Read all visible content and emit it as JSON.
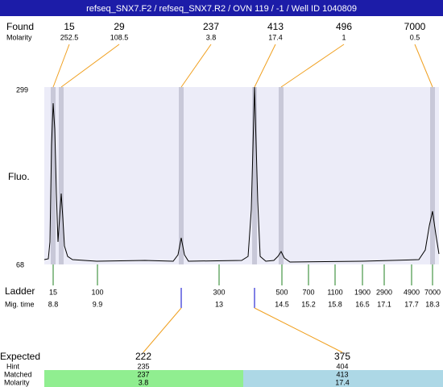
{
  "title": "refseq_SNX7.F2 / refseq_SNX7.R2 / OVN 119 / -1 / Well ID 1040809",
  "found": {
    "label": "Found",
    "sublabel": "Molarity",
    "peaks": [
      {
        "size": 15,
        "molarity": 252.5
      },
      {
        "size": 29,
        "molarity": 108.5
      },
      {
        "size": 237,
        "molarity": 3.8
      },
      {
        "size": 413,
        "molarity": 17.4
      },
      {
        "size": 496,
        "molarity": 1
      },
      {
        "size": 7000,
        "molarity": 0.5
      }
    ]
  },
  "plot": {
    "ymax": 299,
    "ymin": 68,
    "ylabel": "Fluo."
  },
  "ladder": {
    "label": "Ladder",
    "sublabel": "Mig. time",
    "bands": [
      {
        "size": 15,
        "time": 8.8
      },
      {
        "size": 100,
        "time": 9.9
      },
      {
        "size": 300,
        "time": 13
      },
      {
        "size": 500,
        "time": 14.5
      },
      {
        "size": 700,
        "time": 15.2
      },
      {
        "size": 1100,
        "time": 15.8
      },
      {
        "size": 1900,
        "time": 16.5
      },
      {
        "size": 2900,
        "time": 17.1
      },
      {
        "size": 4900,
        "time": 17.7
      },
      {
        "size": 7000,
        "time": 18.3
      }
    ]
  },
  "expected": {
    "label": "Expected",
    "hint_label": "Hint",
    "matched_label": "Matched",
    "molarity_label": "Molarity",
    "items": [
      {
        "expected": 222,
        "hint": 235,
        "matched": 237,
        "molarity": 3.8
      },
      {
        "expected": 375,
        "hint": 404,
        "matched": 413,
        "molarity": 17.4
      }
    ]
  }
}
